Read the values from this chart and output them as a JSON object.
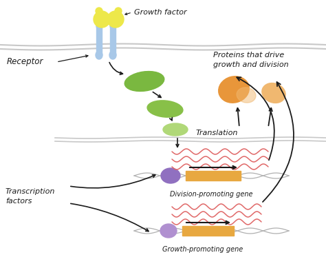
{
  "bg_color": "#ffffff",
  "membrane_color": "#c8c8c8",
  "growth_factor_color": "#ede84a",
  "receptor_color": "#a8c8e8",
  "green_blob1_color": "#7ab840",
  "green_blob2_color": "#88c048",
  "green_blob3_color": "#b0d878",
  "orange_protein1_color": "#e8963a",
  "orange_protein2_color": "#f0b870",
  "purple_tf1_color": "#9070c0",
  "purple_tf2_color": "#b090d0",
  "gene_bar_color": "#e8a840",
  "dna_color": "#b0b0b0",
  "mrna_color": "#e06868",
  "arrow_color": "#1a1a1a",
  "text_color": "#1a1a1a",
  "labels": {
    "growth_factor": "Growth factor",
    "receptor": "Receptor",
    "translation": "Translation",
    "proteins": "Proteins that drive\ngrowth and division",
    "transcription_factors": "Transcription\nfactors",
    "division_gene": "Division-promoting gene",
    "growth_gene": "Growth-promoting gene"
  }
}
